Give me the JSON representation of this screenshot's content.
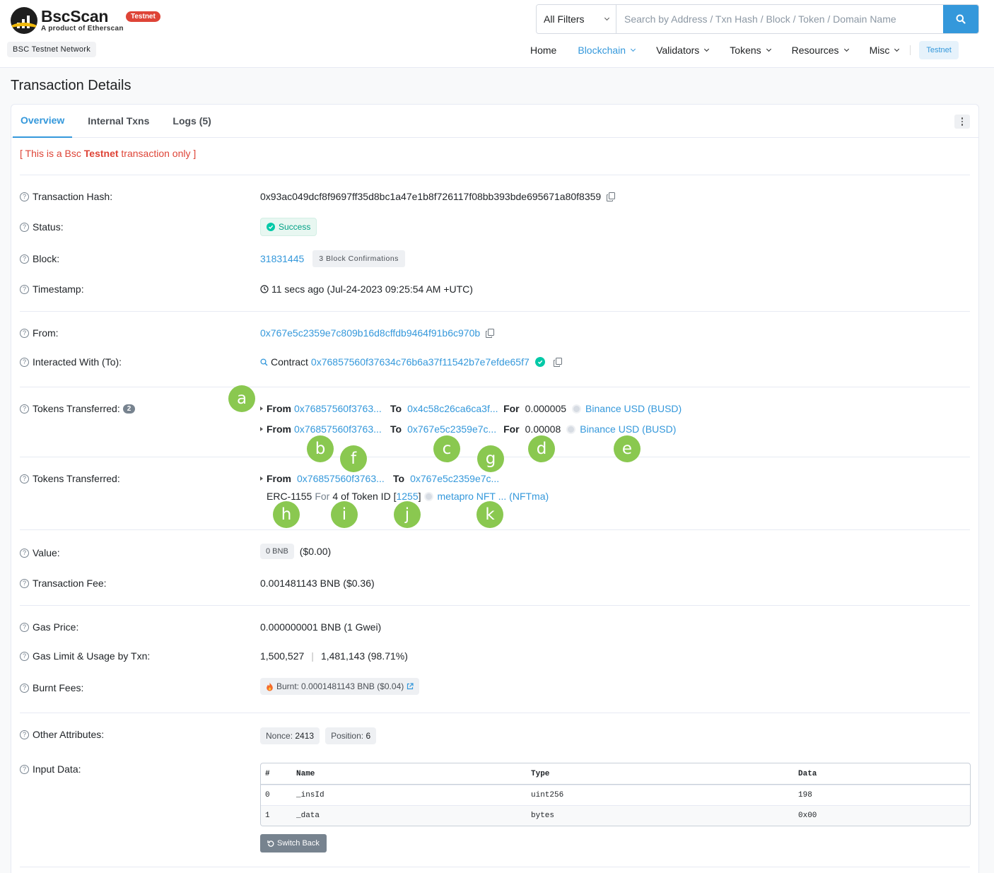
{
  "header": {
    "logo_name": "BscScan",
    "logo_sub": "A product of Etherscan",
    "testnet_pill": "Testnet",
    "network_badge": "BSC Testnet Network",
    "filter_label": "All Filters",
    "search_placeholder": "Search by Address / Txn Hash / Block / Token / Domain Name",
    "nav": {
      "home": "Home",
      "blockchain": "Blockchain",
      "validators": "Validators",
      "tokens": "Tokens",
      "resources": "Resources",
      "misc": "Misc",
      "testnet": "Testnet"
    }
  },
  "page": {
    "title": "Transaction Details",
    "tabs": {
      "overview": "Overview",
      "internal": "Internal Txns",
      "logs": "Logs (5)"
    },
    "notice": {
      "pre": "[ This is a Bsc ",
      "strong": "Testnet",
      "post": " transaction only ]"
    }
  },
  "details": {
    "tx_hash": {
      "label": "Transaction Hash:",
      "value": "0x93ac049dcf8f9697ff35d8bc1a47e1b8f726117f08bb393bde695671a80f8359"
    },
    "status": {
      "label": "Status:",
      "value": "Success"
    },
    "block": {
      "label": "Block:",
      "value": "31831445",
      "confirmations": "3 Block Confirmations"
    },
    "timestamp": {
      "label": "Timestamp:",
      "value": "11 secs ago (Jul-24-2023 09:25:54 AM +UTC)"
    },
    "from": {
      "label": "From:",
      "value": "0x767e5c2359e7c809b16d8cffdb9464f91b6c970b"
    },
    "to": {
      "label": "Interacted With (To):",
      "prefix": "Contract",
      "value": "0x76857560f37634c76b6a37f11542b7e7efde65f7"
    },
    "tokens1": {
      "label": "Tokens Transferred:",
      "count": "2",
      "rows": [
        {
          "from_kw": "From",
          "from": "0x76857560f3763...",
          "to_kw": "To",
          "to": "0x4c58c26ca6ca3f...",
          "for_kw": "For",
          "amount": "0.000005",
          "token": "Binance USD (BUSD)"
        },
        {
          "from_kw": "From",
          "from": "0x76857560f3763...",
          "to_kw": "To",
          "to": "0x767e5c2359e7c...",
          "for_kw": "For",
          "amount": "0.00008",
          "token": "Binance USD (BUSD)"
        }
      ]
    },
    "tokens2": {
      "label": "Tokens Transferred:",
      "from_kw": "From",
      "from": "0x76857560f3763...",
      "to_kw": "To",
      "to": "0x767e5c2359e7c...",
      "standard": "ERC-1155",
      "for_kw": "For",
      "qty": "4",
      "of_text": "of Token ID [",
      "token_id": "1255",
      "close_bracket": "]",
      "token": "metapro NFT ... (NFTma)"
    },
    "value": {
      "label": "Value:",
      "badge": "0 BNB",
      "usd": "($0.00)"
    },
    "fee": {
      "label": "Transaction Fee:",
      "value": "0.001481143 BNB ($0.36)"
    },
    "gas_price": {
      "label": "Gas Price:",
      "value": "0.000000001 BNB (1 Gwei)"
    },
    "gas_limit": {
      "label": "Gas Limit & Usage by Txn:",
      "limit": "1,500,527",
      "sep": "|",
      "usage": "1,481,143 (98.71%)"
    },
    "burnt": {
      "label": "Burnt Fees:",
      "prefix": "Burnt:",
      "value": "0.0001481143 BNB ($0.04)"
    },
    "other": {
      "label": "Other Attributes:",
      "nonce_label": "Nonce:",
      "nonce": "2413",
      "position_label": "Position:",
      "position": "6"
    },
    "input": {
      "label": "Input Data:",
      "headers": [
        "#",
        "Name",
        "Type",
        "Data"
      ],
      "rows": [
        {
          "num": "0",
          "name": "_insId",
          "type": "uint256",
          "data": "198"
        },
        {
          "num": "1",
          "name": "_data",
          "type": "bytes",
          "data": "0x00"
        }
      ],
      "switch_label": "Switch Back"
    }
  },
  "markers": [
    "a",
    "b",
    "c",
    "d",
    "e",
    "f",
    "g",
    "h",
    "i",
    "j",
    "k"
  ],
  "colors": {
    "accent": "#3498db",
    "marker": "#8ac850",
    "success": "#00c9a7",
    "danger": "#de4437"
  }
}
